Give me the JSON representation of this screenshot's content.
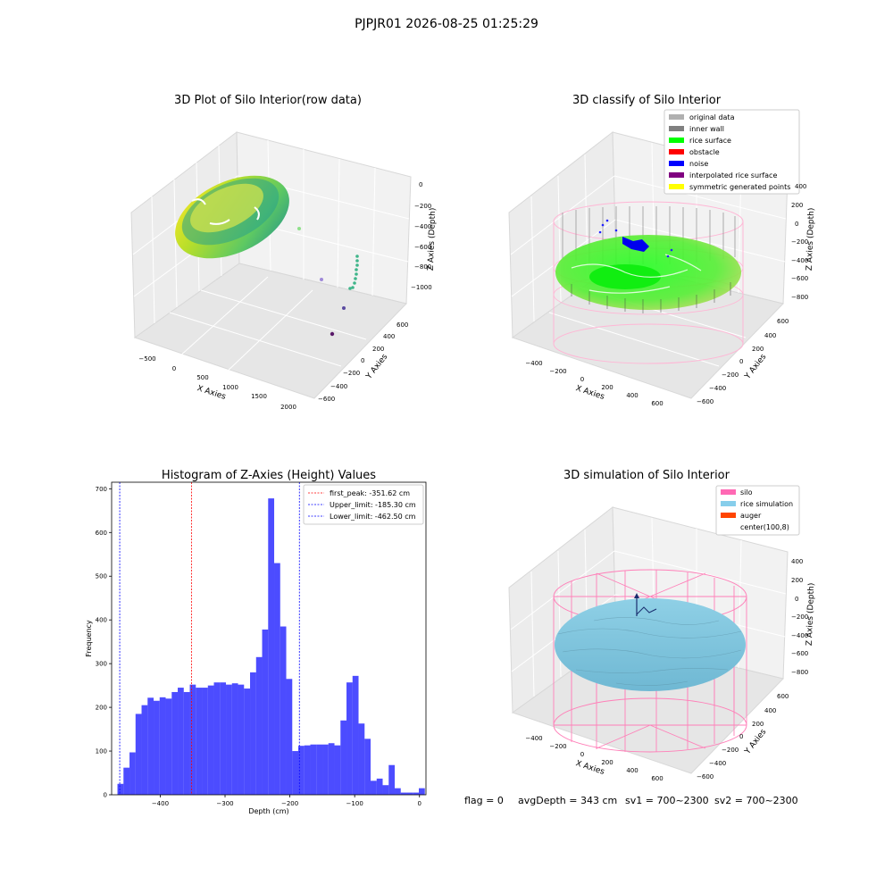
{
  "figure": {
    "suptitle": "PJPJR01 2026-08-25 01:25:29",
    "footer": {
      "flag": "flag = 0",
      "avg_depth": "avgDepth = 343 cm",
      "sv1": "sv1 = 700~2300",
      "sv2": "sv2 = 700~2300"
    }
  },
  "chart_data": [
    {
      "type": "scatter",
      "projection": "3d",
      "title": "3D Plot of Silo Interior(row data)",
      "xlabel": "X Axies",
      "ylabel": "Y Axies",
      "zlabel": "Z Axies (Depth)",
      "x_ticks": [
        "−500",
        "0",
        "500",
        "1000",
        "1500",
        "2000"
      ],
      "y_ticks": [
        "600",
        "400",
        "200",
        "0",
        "−200",
        "−400",
        "−600"
      ],
      "z_ticks": [
        "0",
        "−200",
        "−400",
        "−600",
        "−800",
        "−1000"
      ],
      "colormap": "viridis",
      "outlier_points": [
        {
          "x": 1300,
          "y": 500,
          "z": -600
        },
        {
          "x": 1500,
          "y": 300,
          "z": -1000
        },
        {
          "x": 1700,
          "y": 100,
          "z": -1100
        },
        {
          "x": 1900,
          "y": -100,
          "z": -1200
        }
      ]
    },
    {
      "type": "scatter",
      "projection": "3d",
      "title": "3D classify of Silo Interior",
      "xlabel": "X Axies",
      "ylabel": "Y Axies",
      "zlabel": "Z Axies (Depth)",
      "x_ticks": [
        "−400",
        "−200",
        "0",
        "200",
        "400",
        "600"
      ],
      "y_ticks": [
        "600",
        "400",
        "200",
        "0",
        "−200",
        "−400",
        "−600"
      ],
      "z_ticks": [
        "400",
        "200",
        "0",
        "−200",
        "−400",
        "−600",
        "−800"
      ],
      "legend_position": "top-right",
      "legend": [
        {
          "label": "original data",
          "color": "#b0b0b0"
        },
        {
          "label": "inner wall",
          "color": "#808080"
        },
        {
          "label": "rice surface",
          "color": "#00ff00"
        },
        {
          "label": "obstacle",
          "color": "#ff0000"
        },
        {
          "label": "noise",
          "color": "#0000ff"
        },
        {
          "label": "interpolated rice surface",
          "color": "#800080"
        },
        {
          "label": "symmetric generated points",
          "color": "#ffff00"
        }
      ]
    },
    {
      "type": "bar",
      "title": "Histogram of Z-Axies (Height) Values",
      "xlabel": "Depth (cm)",
      "ylabel": "Frequency",
      "xlim": [
        -475,
        10
      ],
      "ylim": [
        0,
        715
      ],
      "x_ticks": [
        -400,
        -300,
        -200,
        -100,
        0
      ],
      "x_tick_labels": [
        "−400",
        "−300",
        "−200",
        "−100",
        "0"
      ],
      "y_ticks": [
        0,
        100,
        200,
        300,
        400,
        500,
        600,
        700
      ],
      "bar_color": "#0000ff",
      "bin_start": -466,
      "bin_width": 9.3,
      "values": [
        25,
        62,
        97,
        185,
        205,
        222,
        215,
        223,
        220,
        235,
        245,
        235,
        252,
        245,
        245,
        250,
        257,
        257,
        252,
        255,
        252,
        243,
        280,
        315,
        378,
        678,
        530,
        385,
        265,
        100,
        112,
        113,
        115,
        115,
        115,
        118,
        113,
        170,
        257,
        272,
        163,
        128,
        32,
        37,
        22,
        68,
        15,
        5,
        5,
        5,
        15
      ],
      "vlines": [
        {
          "label": "first_peak: -351.62 cm",
          "x": -351.62,
          "color": "#ff0000"
        },
        {
          "label": "Upper_limit: -185.30 cm",
          "x": -185.3,
          "color": "#0000ff"
        },
        {
          "label": "Lower_limit: -462.50 cm",
          "x": -462.5,
          "color": "#0000ff"
        }
      ],
      "legend_position": "top-right"
    },
    {
      "type": "scatter",
      "projection": "3d",
      "title": "3D simulation of Silo Interior",
      "xlabel": "X Axies",
      "ylabel": "Y Axies",
      "zlabel": "Z Axies (Depth)",
      "x_ticks": [
        "−400",
        "−200",
        "0",
        "200",
        "400",
        "600"
      ],
      "y_ticks": [
        "600",
        "400",
        "200",
        "0",
        "−200",
        "−400",
        "−600"
      ],
      "z_ticks": [
        "400",
        "200",
        "0",
        "−200",
        "−400",
        "−600",
        "−800"
      ],
      "legend_position": "top-right",
      "legend": [
        {
          "label": "silo",
          "color": "#ff69b4"
        },
        {
          "label": "rice simulation",
          "color": "#87ceeb"
        },
        {
          "label": "auger",
          "color": "#ff4500"
        },
        {
          "label": "center(100,8)",
          "color": "#ffffff"
        }
      ]
    }
  ]
}
